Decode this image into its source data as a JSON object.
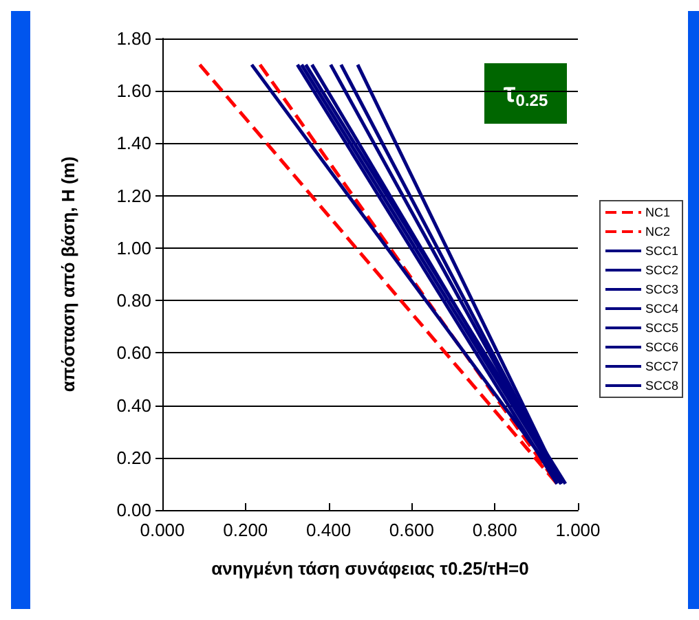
{
  "chart_data": {
    "type": "line",
    "xlabel": "ανηγμένη τάση συνάφειας τ0.25/τH=0",
    "ylabel": "απόσταση από βάση, H (m)",
    "annotations": [
      "τ$_{0.25}$"
    ],
    "xlim": [
      0,
      1
    ],
    "xticks": [
      {
        "value": 0,
        "label": "0.000"
      },
      {
        "value": 0.2,
        "label": "0.200"
      },
      {
        "value": 0.4,
        "label": "0.400"
      },
      {
        "value": 0.6,
        "label": "0.600"
      },
      {
        "value": 0.8,
        "label": "0.800"
      },
      {
        "value": 1,
        "label": "1.000"
      }
    ],
    "ylim": [
      0,
      1.8
    ],
    "yticks": [
      {
        "value": 0,
        "label": "0.00"
      },
      {
        "value": 0.2,
        "label": "0.20"
      },
      {
        "value": 0.4,
        "label": "0.40"
      },
      {
        "value": 0.6,
        "label": "0.60"
      },
      {
        "value": 0.8,
        "label": "0.80"
      },
      {
        "value": 1,
        "label": "1.00"
      },
      {
        "value": 1.2,
        "label": "1.20"
      },
      {
        "value": 1.4,
        "label": "1.40"
      },
      {
        "value": 1.6,
        "label": "1.60"
      },
      {
        "value": 1.8,
        "label": "1.80"
      }
    ],
    "grid": "y",
    "legend": "right",
    "marker": "none",
    "series": [
      {
        "name": "NC1",
        "color": "#ff0000",
        "line_style": "dashed",
        "x": [
          0.09,
          0.95
        ],
        "values": [
          1.7,
          0.1
        ]
      },
      {
        "name": "NC2",
        "color": "#ff0000",
        "line_style": "dashed",
        "x": [
          0.235,
          0.95
        ],
        "values": [
          1.7,
          0.1
        ]
      },
      {
        "name": "SCC1",
        "color": "#000080",
        "line_style": "solid",
        "x": [
          0.215,
          0.96
        ],
        "values": [
          1.7,
          0.1
        ]
      },
      {
        "name": "SCC2",
        "color": "#000080",
        "line_style": "solid",
        "x": [
          0.325,
          0.95
        ],
        "values": [
          1.7,
          0.1
        ]
      },
      {
        "name": "SCC3",
        "color": "#000080",
        "line_style": "solid",
        "x": [
          0.345,
          0.97
        ],
        "values": [
          1.7,
          0.1
        ]
      },
      {
        "name": "SCC4",
        "color": "#000080",
        "line_style": "solid",
        "x": [
          0.335,
          0.96
        ],
        "values": [
          1.7,
          0.1
        ]
      },
      {
        "name": "SCC5",
        "color": "#000080",
        "line_style": "solid",
        "x": [
          0.36,
          0.96
        ],
        "values": [
          1.7,
          0.1
        ]
      },
      {
        "name": "SCC6",
        "color": "#000080",
        "line_style": "solid",
        "x": [
          0.405,
          0.96
        ],
        "values": [
          1.7,
          0.1
        ]
      },
      {
        "name": "SCC7",
        "color": "#000080",
        "line_style": "solid",
        "x": [
          0.43,
          0.96
        ],
        "values": [
          1.7,
          0.1
        ]
      },
      {
        "name": "SCC8",
        "color": "#000080",
        "line_style": "solid",
        "x": [
          0.47,
          0.96
        ],
        "values": [
          1.7,
          0.1
        ]
      }
    ]
  }
}
